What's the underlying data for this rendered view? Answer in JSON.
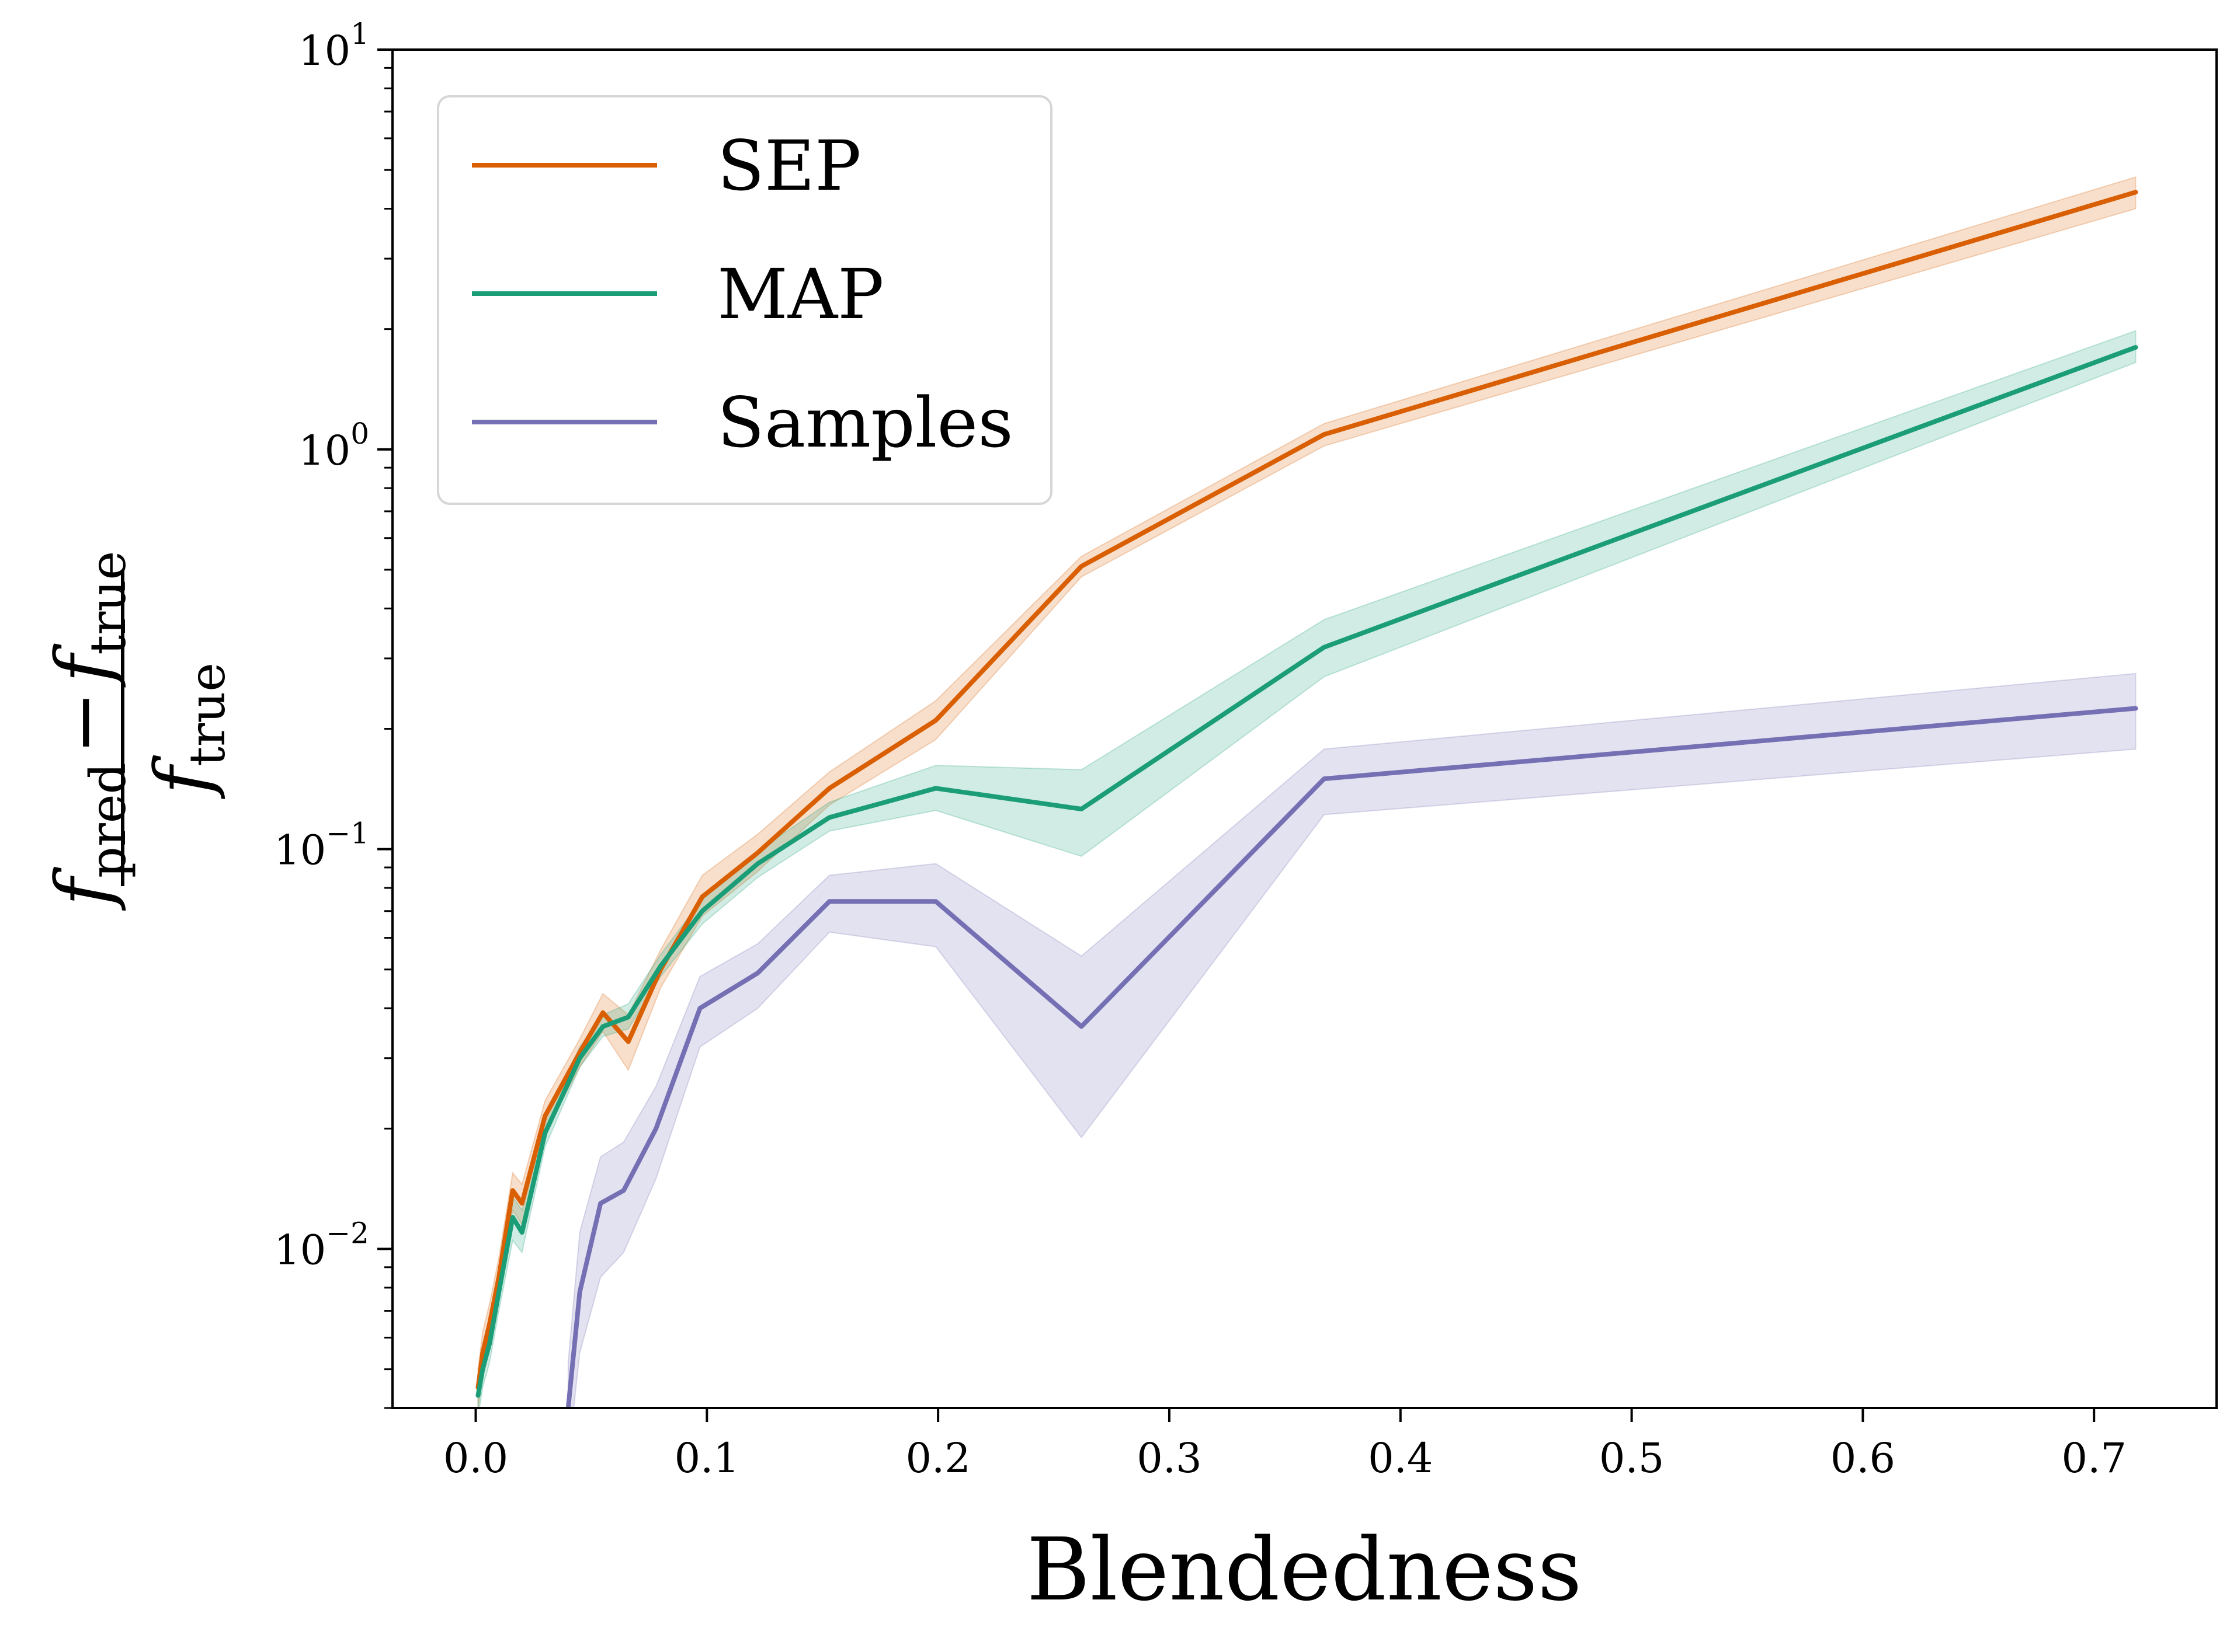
{
  "chart_data": {
    "type": "line",
    "title": "",
    "xlabel": "Blendedness",
    "ylabel": {
      "numerator_left": "f",
      "numerator_left_sub": "pred",
      "minus": "−",
      "numerator_right": "f",
      "numerator_right_sub": "true",
      "denominator": "f",
      "denominator_sub": "true"
    },
    "xlim": [
      -0.036,
      0.753
    ],
    "ylim": [
      0.004,
      10
    ],
    "yscale": "log",
    "xticks": [
      0.0,
      0.1,
      0.2,
      0.3,
      0.4,
      0.5,
      0.6,
      0.7
    ],
    "xtick_labels": [
      "0.0",
      "0.1",
      "0.2",
      "0.3",
      "0.4",
      "0.5",
      "0.6",
      "0.7"
    ],
    "yticks": [
      {
        "value": 10,
        "base": "10",
        "exp": "1"
      },
      {
        "value": 1,
        "base": "10",
        "exp": "0"
      },
      {
        "value": 0.1,
        "base": "10",
        "exp": "−1"
      },
      {
        "value": 0.01,
        "base": "10",
        "exp": "−2"
      }
    ],
    "grid": false,
    "legend_position": "top-left",
    "series": [
      {
        "name": "SEP",
        "color": "#d95f02",
        "x": [
          0.001,
          0.003,
          0.006,
          0.01,
          0.016,
          0.02,
          0.03,
          0.045,
          0.055,
          0.066,
          0.08,
          0.098,
          0.122,
          0.153,
          0.199,
          0.262,
          0.367,
          0.718
        ],
        "y": [
          0.0045,
          0.0055,
          0.0065,
          0.0085,
          0.014,
          0.013,
          0.0215,
          0.031,
          0.039,
          0.033,
          0.05,
          0.076,
          0.098,
          0.142,
          0.21,
          0.51,
          1.09,
          4.4
        ],
        "lower": [
          0.004,
          0.0048,
          0.0058,
          0.0075,
          0.0125,
          0.0115,
          0.0195,
          0.0285,
          0.035,
          0.028,
          0.045,
          0.068,
          0.088,
          0.129,
          0.188,
          0.48,
          1.02,
          4.0
        ],
        "upper": [
          0.005,
          0.0062,
          0.0073,
          0.0095,
          0.0155,
          0.0145,
          0.0235,
          0.0335,
          0.0435,
          0.0385,
          0.056,
          0.086,
          0.109,
          0.156,
          0.235,
          0.54,
          1.16,
          4.8
        ]
      },
      {
        "name": "MAP",
        "color": "#1b9e77",
        "x": [
          0.001,
          0.003,
          0.006,
          0.01,
          0.016,
          0.02,
          0.03,
          0.045,
          0.055,
          0.066,
          0.08,
          0.098,
          0.122,
          0.153,
          0.199,
          0.262,
          0.367,
          0.718
        ],
        "y": [
          0.0043,
          0.005,
          0.0058,
          0.0078,
          0.012,
          0.011,
          0.0195,
          0.03,
          0.036,
          0.038,
          0.051,
          0.07,
          0.092,
          0.12,
          0.142,
          0.126,
          0.32,
          1.8
        ],
        "lower": [
          0.0038,
          0.0045,
          0.0052,
          0.007,
          0.0105,
          0.0098,
          0.018,
          0.0285,
          0.034,
          0.0355,
          0.048,
          0.065,
          0.085,
          0.111,
          0.125,
          0.096,
          0.27,
          1.65
        ],
        "upper": [
          0.0048,
          0.0056,
          0.0064,
          0.0086,
          0.0135,
          0.0125,
          0.021,
          0.032,
          0.0385,
          0.041,
          0.0545,
          0.075,
          0.099,
          0.131,
          0.162,
          0.158,
          0.375,
          1.98
        ]
      },
      {
        "name": "Samples",
        "color": "#7570b3",
        "x": [
          0.04,
          0.045,
          0.054,
          0.064,
          0.078,
          0.097,
          0.122,
          0.153,
          0.199,
          0.262,
          0.367,
          0.718
        ],
        "y": [
          0.004,
          0.0078,
          0.013,
          0.014,
          0.02,
          0.04,
          0.049,
          0.074,
          0.074,
          0.036,
          0.15,
          0.225
        ],
        "lower": [
          0.003,
          0.0055,
          0.0085,
          0.0098,
          0.015,
          0.032,
          0.04,
          0.062,
          0.057,
          0.019,
          0.122,
          0.178
        ],
        "upper": [
          0.0052,
          0.011,
          0.017,
          0.0185,
          0.0255,
          0.048,
          0.058,
          0.086,
          0.092,
          0.054,
          0.178,
          0.275
        ]
      }
    ]
  }
}
